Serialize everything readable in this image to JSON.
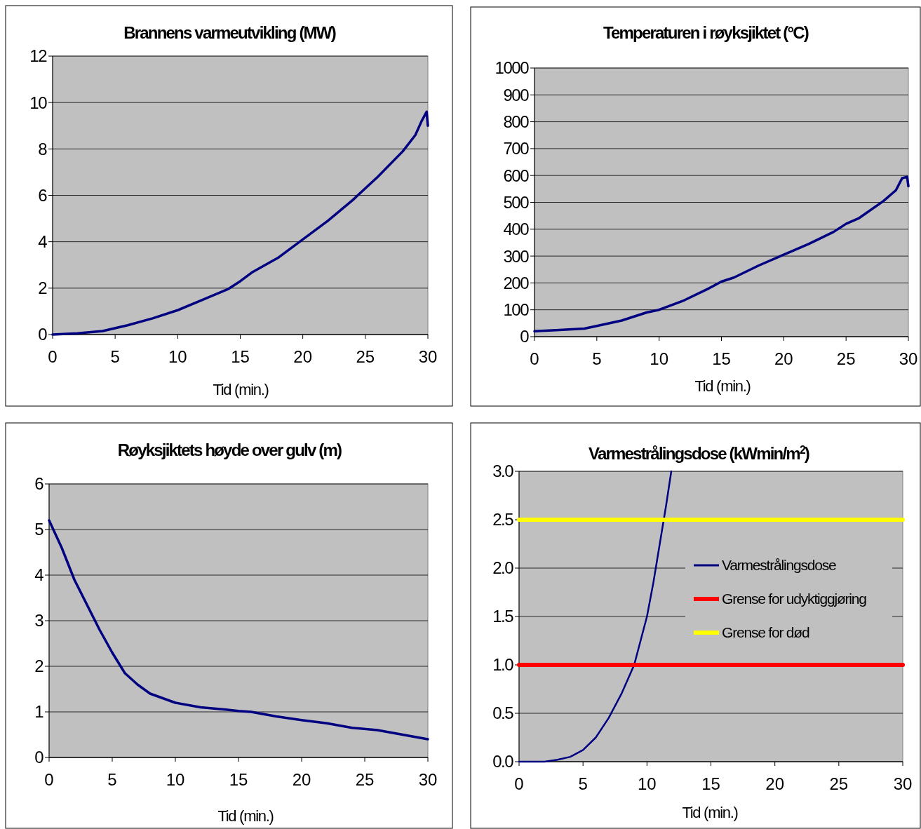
{
  "chart_data": [
    {
      "type": "line",
      "title": "Brannens varmeutvikling (MW)",
      "xlabel": "Tid (min.)",
      "xlim": [
        0,
        30
      ],
      "xticks": [
        0,
        5,
        10,
        15,
        20,
        25,
        30
      ],
      "ylim": [
        0,
        12
      ],
      "yticks": [
        0,
        2,
        4,
        6,
        8,
        10,
        12
      ],
      "grid": "y",
      "series": [
        {
          "color": "#000080",
          "x": [
            0,
            2,
            4,
            6,
            8,
            10,
            12,
            14,
            15,
            16,
            18,
            20,
            22,
            24,
            25,
            26,
            28,
            29,
            29.5,
            29.9,
            30
          ],
          "values": [
            0,
            0.05,
            0.15,
            0.4,
            0.7,
            1.05,
            1.5,
            1.95,
            2.3,
            2.7,
            3.3,
            4.1,
            4.9,
            5.8,
            6.3,
            6.8,
            7.9,
            8.6,
            9.2,
            9.6,
            9.0
          ]
        }
      ]
    },
    {
      "type": "line",
      "title": "Temperaturen i røyksjiktet (°C)",
      "xlabel": "Tid (min.)",
      "xlim": [
        0,
        30
      ],
      "xticks": [
        0,
        5,
        10,
        15,
        20,
        25,
        30
      ],
      "ylim": [
        0,
        1000
      ],
      "yticks": [
        0,
        100,
        200,
        300,
        400,
        500,
        600,
        700,
        800,
        900,
        1000
      ],
      "grid": "y",
      "series": [
        {
          "color": "#000080",
          "x": [
            0,
            2,
            4,
            5,
            7,
            9,
            10,
            12,
            14,
            15,
            16,
            18,
            20,
            22,
            24,
            25,
            26,
            28,
            29,
            29.5,
            29.9,
            30
          ],
          "values": [
            20,
            25,
            30,
            40,
            60,
            90,
            100,
            135,
            180,
            205,
            220,
            265,
            305,
            345,
            390,
            420,
            440,
            505,
            545,
            590,
            595,
            560
          ]
        }
      ]
    },
    {
      "type": "line",
      "title": "Røyksjiktets høyde over gulv (m)",
      "xlabel": "Tid (min.)",
      "xlim": [
        0,
        30
      ],
      "xticks": [
        0,
        5,
        10,
        15,
        20,
        25,
        30
      ],
      "ylim": [
        0,
        6
      ],
      "yticks": [
        0,
        1,
        2,
        3,
        4,
        5,
        6
      ],
      "grid": "y",
      "series": [
        {
          "color": "#000080",
          "x": [
            0,
            1,
            2,
            3,
            4,
            5,
            6,
            7,
            8,
            9,
            10,
            12,
            14,
            15,
            16,
            18,
            20,
            22,
            24,
            26,
            28,
            30
          ],
          "values": [
            5.2,
            4.6,
            3.9,
            3.35,
            2.8,
            2.3,
            1.85,
            1.6,
            1.4,
            1.3,
            1.2,
            1.1,
            1.05,
            1.02,
            1.0,
            0.9,
            0.82,
            0.75,
            0.65,
            0.6,
            0.5,
            0.4
          ]
        }
      ]
    },
    {
      "type": "line",
      "title": "Varmestrålingsdose (kWmin/m$^{2}$)",
      "xlabel": "Tid (min.)",
      "xlim": [
        0,
        30
      ],
      "xticks": [
        0,
        5,
        10,
        15,
        20,
        25,
        30
      ],
      "ylim": [
        0,
        3
      ],
      "yticks": [
        {
          "value": 0,
          "label": "0.0"
        },
        {
          "value": 0.5,
          "label": "0.5"
        },
        {
          "value": 1,
          "label": "1.0"
        },
        {
          "value": 1.5,
          "label": "1.5"
        },
        {
          "value": 2,
          "label": "2.0"
        },
        {
          "value": 2.5,
          "label": "2.5"
        },
        {
          "value": 3,
          "label": "3.0"
        }
      ],
      "grid": "y",
      "legend": "right",
      "series": [
        {
          "name": "Varmestrålingsdose",
          "color": "#000080",
          "x": [
            0,
            2,
            3,
            4,
            5,
            6,
            7,
            8,
            9,
            10,
            10.5,
            11,
            11.5,
            11.9
          ],
          "values": [
            0,
            0,
            0.02,
            0.05,
            0.12,
            0.25,
            0.45,
            0.7,
            1.0,
            1.5,
            1.85,
            2.25,
            2.65,
            3.0
          ]
        },
        {
          "name": "Grense for udyktiggjøring",
          "color": "#ff0000",
          "x": [
            0,
            30
          ],
          "values": [
            1,
            1
          ]
        },
        {
          "name": "Grense for død",
          "color": "#ffff00",
          "x": [
            0,
            30
          ],
          "values": [
            2.5,
            2.5
          ]
        }
      ]
    }
  ]
}
